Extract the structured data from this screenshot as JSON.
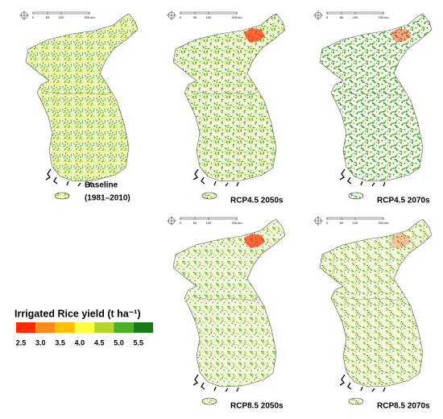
{
  "panels": [
    {
      "label": [
        "Baseline",
        "(1981–2010)"
      ]
    },
    {
      "label": [
        "RCP4.5 2050s"
      ]
    },
    {
      "label": [
        "RCP4.5 2070s"
      ]
    },
    {
      "label": [
        "RCP8.5 2050s"
      ]
    },
    {
      "label": [
        "RCP8.5 2070s"
      ]
    }
  ],
  "scale_bar": {
    "labels": [
      "0",
      "50",
      "100",
      "200 km"
    ]
  },
  "legend": {
    "title": "Irrigated Rice yield (t ha⁻¹)",
    "ticks": [
      "2.5",
      "3.0",
      "3.5",
      "4.0",
      "4.5",
      "5.0",
      "5.5"
    ]
  }
}
